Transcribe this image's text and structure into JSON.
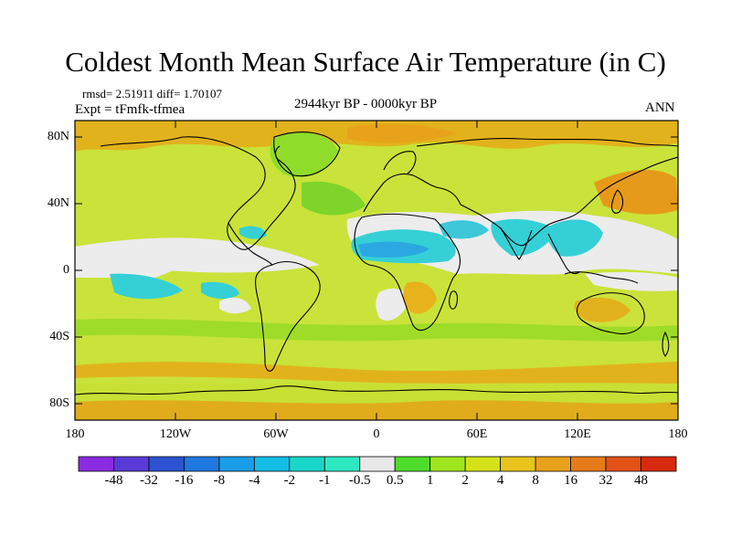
{
  "title": "Coldest Month Mean Surface Air Temperature (in C)",
  "stats": "rmsd= 2.51911 diff= 1.70107",
  "experiment": "Expt = tFmfk-tfmea",
  "period": "2944kyr BP - 0000kyr BP",
  "season": "ANN",
  "y_axis_labels": [
    "80N",
    "40N",
    "0",
    "40S",
    "80S"
  ],
  "x_axis_labels": [
    "180",
    "120W",
    "60W",
    "0",
    "60E",
    "120E",
    "180"
  ],
  "colorbar": {
    "labels": [
      "-48",
      "-32",
      "-16",
      "-8",
      "-4",
      "-2",
      "-1",
      "-0.5",
      "0.5",
      "1",
      "2",
      "4",
      "8",
      "16",
      "32",
      "48"
    ],
    "colors": [
      "#8a2be2",
      "#5a3ad6",
      "#2c52d1",
      "#1f78e0",
      "#1a9ee8",
      "#14bde6",
      "#19d6c8",
      "#2ee8c2",
      "#e8e8e8",
      "#4edc2a",
      "#9ee61e",
      "#d4e21a",
      "#e8c41c",
      "#e8a21a",
      "#e67a18",
      "#e25214",
      "#d72a10"
    ]
  },
  "colors": {
    "land_base": "#a8e030",
    "ocean_base": "#c9e33a",
    "neutral": "#ececec",
    "cyan": "#35d0d6",
    "blue": "#1f9fe0",
    "orange": "#e8a21a",
    "coast": "#000000"
  }
}
